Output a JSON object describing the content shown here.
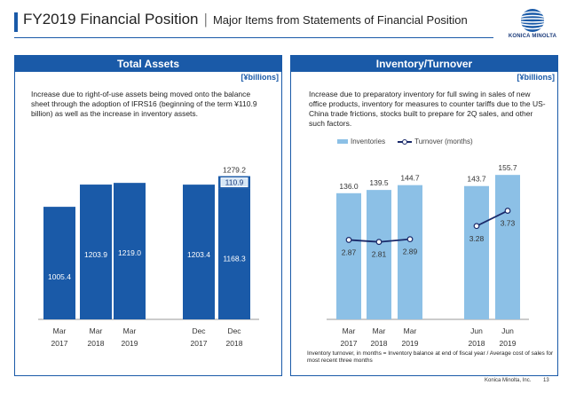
{
  "header": {
    "title": "FY2019 Financial Position",
    "separator": "|",
    "subtitle": "Major Items from Statements of Financial Position"
  },
  "logo": {
    "text": "KONICA MINOLTA"
  },
  "left_panel": {
    "title": "Total Assets",
    "unit": "[¥billions]",
    "description": "Increase due to right-of-use assets being moved onto the balance sheet through the adoption of IFRS16 (beginning of the term ¥110.9 billion) as well as the increase in inventory assets."
  },
  "right_panel": {
    "title": "Inventory/Turnover",
    "unit": "[¥billions]",
    "description": "Increase due to preparatory inventory for full swing in sales of new office products, inventory for measures to counter tariffs due to the US-China trade frictions, stocks built to prepare for 2Q sales, and other such factors.",
    "legend": {
      "bars": "Inventories",
      "line": "Turnover (months)"
    },
    "note": "Inventory turnover, in months = Inventory balance at end of fiscal year / Average cost of sales for most recent three months"
  },
  "footer": {
    "company": "Konica Minolta, Inc.",
    "page": "13"
  },
  "colors": {
    "brand": "#1a5aa8",
    "bar_dark": "#1a5aa8",
    "bar_light": "#8cc0e6",
    "line": "#1a2a6a"
  },
  "chart_data": [
    {
      "type": "bar",
      "title": "Total Assets",
      "categories": [
        "Mar 2017",
        "Mar 2018",
        "Mar 2019",
        "Dec 2017",
        "Dec 2018"
      ],
      "cat_line1": [
        "Mar",
        "Mar",
        "Mar",
        "Dec",
        "Dec"
      ],
      "cat_line2": [
        "2017",
        "2018",
        "2019",
        "2017",
        "2018"
      ],
      "values": [
        1005.4,
        1203.9,
        1219.0,
        1203.4,
        1168.3
      ],
      "labels": [
        "1005.4",
        "1203.9",
        "1219.0",
        "1203.4",
        "1168.3"
      ],
      "stack_addition": {
        "category": "Dec 2018",
        "value": 110.9,
        "label": "110.9"
      },
      "total_label": {
        "category": "Dec 2018",
        "value": 1279.2,
        "label": "1279.2"
      },
      "ylim": [
        0,
        1450
      ]
    },
    {
      "type": "bar",
      "title": "Inventory/Turnover",
      "categories": [
        "Mar 2017",
        "Mar 2018",
        "Mar 2019",
        "Jun 2018",
        "Jun 2019"
      ],
      "cat_line1": [
        "Mar",
        "Mar",
        "Mar",
        "Jun",
        "Jun"
      ],
      "cat_line2": [
        "2017",
        "2018",
        "2019",
        "2018",
        "2019"
      ],
      "series": [
        {
          "name": "Inventories",
          "type": "bar",
          "values": [
            136.0,
            139.5,
            144.7,
            143.7,
            155.7
          ],
          "labels": [
            "136.0",
            "139.5",
            "144.7",
            "143.7",
            "155.7"
          ]
        },
        {
          "name": "Turnover (months)",
          "type": "line",
          "values": [
            2.87,
            2.81,
            2.89,
            3.28,
            3.73
          ],
          "labels": [
            "2.87",
            "2.81",
            "2.89",
            "3.28",
            "3.73"
          ],
          "segments": [
            [
              0,
              1,
              2
            ],
            [
              3,
              4
            ]
          ]
        }
      ],
      "ylim": [
        0,
        175
      ],
      "y2lim": [
        0,
        5.5
      ]
    }
  ]
}
